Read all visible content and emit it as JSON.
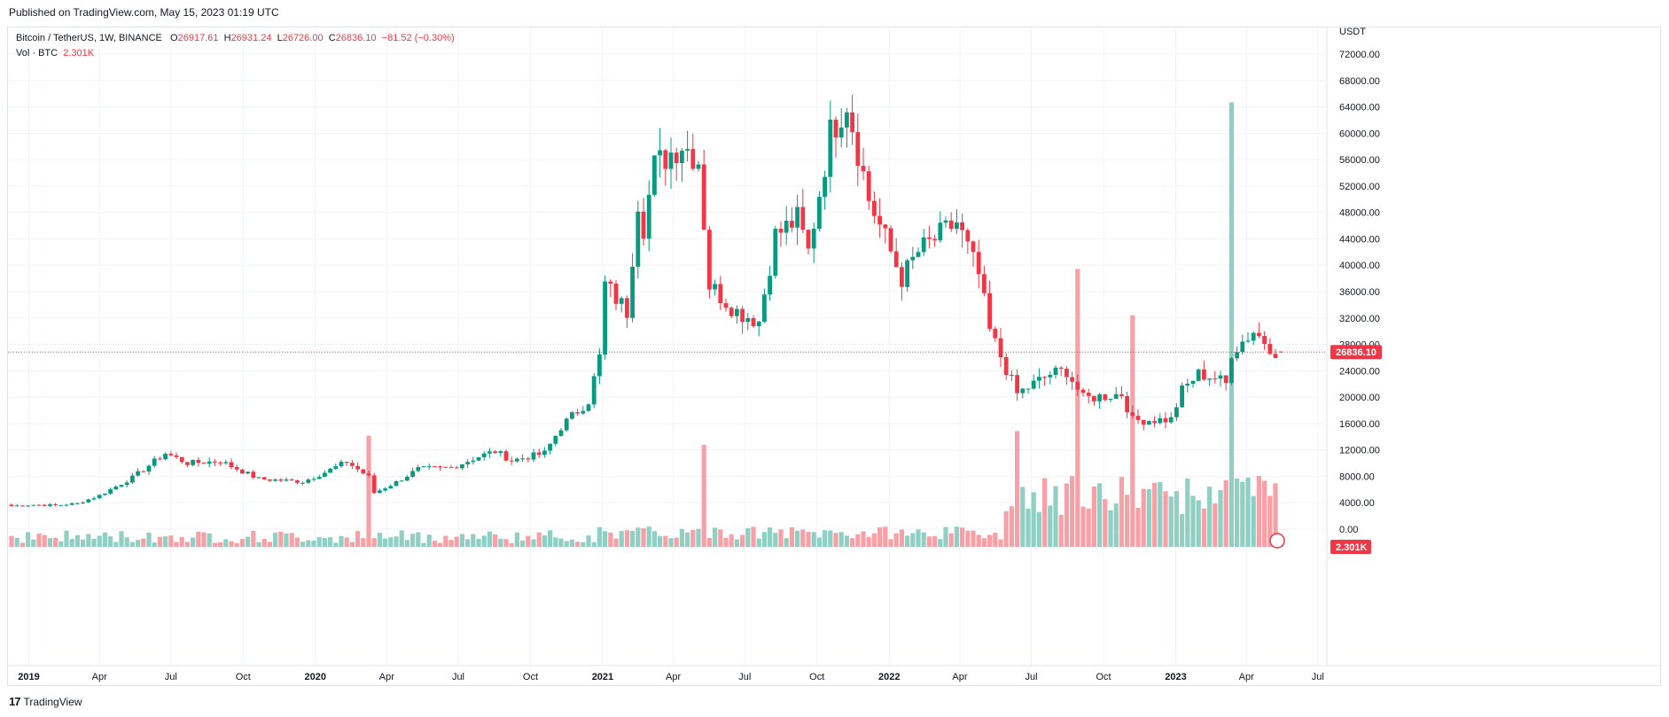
{
  "header": {
    "published": "Published on TradingView.com, May 15, 2023 01:19 UTC"
  },
  "legend": {
    "symbol": "Bitcoin / TetherUS, 1W, BINANCE",
    "o_label": "O",
    "o_value": "26917.61",
    "h_label": "H",
    "h_value": "26931.24",
    "l_label": "L",
    "l_value": "26726.00",
    "c_label": "C",
    "c_value": "26836.10",
    "change": "−81.52 (−0.30%)",
    "vol_label": "Vol · BTC",
    "vol_value": "2.301K"
  },
  "footer": {
    "brand": "TradingView"
  },
  "colors": {
    "up": "#089981",
    "down": "#f23645",
    "vol_up": "#8fcfc4",
    "vol_down": "#f7a1a7",
    "grid": "#f0f3fa"
  },
  "chart_data": {
    "type": "candlestick",
    "price_unit": "USDT",
    "ylim": [
      0,
      72000
    ],
    "yticks": [
      "72000.00",
      "68000.00",
      "64000.00",
      "60000.00",
      "56000.00",
      "52000.00",
      "48000.00",
      "44000.00",
      "40000.00",
      "36000.00",
      "32000.00",
      "28000.00",
      "24000.00",
      "20000.00",
      "16000.00",
      "12000.00",
      "8000.00",
      "4000.00",
      "0.00"
    ],
    "xticks": [
      "2019",
      "Apr",
      "Jul",
      "Oct",
      "2020",
      "Apr",
      "Jul",
      "Oct",
      "2021",
      "Apr",
      "Jul",
      "Oct",
      "2022",
      "Apr",
      "Jul",
      "Oct",
      "2023",
      "Apr",
      "Jul"
    ],
    "last_price_label": "26836.10",
    "last_volume_label": "2.301K",
    "grid": true,
    "anchors": [
      [
        "2018-12-10",
        3500
      ],
      [
        "2019-01-07",
        3700
      ],
      [
        "2019-02-04",
        3600
      ],
      [
        "2019-03-04",
        3900
      ],
      [
        "2019-04-01",
        5100
      ],
      [
        "2019-05-13",
        7800
      ],
      [
        "2019-06-24",
        11500
      ],
      [
        "2019-07-22",
        10000
      ],
      [
        "2019-09-02",
        10300
      ],
      [
        "2019-10-21",
        7600
      ],
      [
        "2019-11-18",
        7400
      ],
      [
        "2019-12-16",
        7200
      ],
      [
        "2020-01-13",
        8600
      ],
      [
        "2020-02-10",
        10200
      ],
      [
        "2020-03-09",
        7900
      ],
      [
        "2020-03-16",
        5500
      ],
      [
        "2020-04-13",
        7100
      ],
      [
        "2020-05-11",
        9100
      ],
      [
        "2020-06-22",
        9300
      ],
      [
        "2020-07-27",
        11000
      ],
      [
        "2020-08-17",
        11800
      ],
      [
        "2020-09-07",
        10400
      ],
      [
        "2020-10-19",
        11500
      ],
      [
        "2020-11-09",
        15500
      ],
      [
        "2020-12-14",
        19500
      ],
      [
        "2020-12-28",
        26000
      ],
      [
        "2021-01-04",
        37000
      ],
      [
        "2021-02-01",
        33000
      ],
      [
        "2021-02-15",
        50000
      ],
      [
        "2021-02-22",
        46000
      ],
      [
        "2021-03-08",
        55000
      ],
      [
        "2021-04-12",
        58500
      ],
      [
        "2021-05-03",
        56000
      ],
      [
        "2021-05-17",
        37000
      ],
      [
        "2021-06-21",
        33000
      ],
      [
        "2021-07-19",
        31500
      ],
      [
        "2021-08-09",
        44500
      ],
      [
        "2021-09-06",
        47000
      ],
      [
        "2021-09-20",
        42000
      ],
      [
        "2021-10-18",
        60000
      ],
      [
        "2021-11-08",
        65000
      ],
      [
        "2021-12-06",
        50000
      ],
      [
        "2022-01-17",
        38000
      ],
      [
        "2022-02-07",
        42000
      ],
      [
        "2022-03-28",
        46500
      ],
      [
        "2022-04-25",
        38500
      ],
      [
        "2022-05-09",
        30000
      ],
      [
        "2022-06-13",
        20500
      ],
      [
        "2022-07-25",
        23500
      ],
      [
        "2022-08-15",
        24000
      ],
      [
        "2022-09-05",
        19800
      ],
      [
        "2022-10-24",
        20500
      ],
      [
        "2022-11-07",
        16500
      ],
      [
        "2022-12-26",
        16600
      ],
      [
        "2023-01-09",
        21000
      ],
      [
        "2023-01-30",
        23500
      ],
      [
        "2023-02-20",
        23000
      ],
      [
        "2023-03-06",
        22000
      ],
      [
        "2023-03-13",
        26900
      ],
      [
        "2023-04-10",
        30000
      ],
      [
        "2023-05-08",
        27000
      ],
      [
        "2023-05-15",
        26836
      ]
    ],
    "volume_spikes_k": [
      [
        "2020-03-09",
        120
      ],
      [
        "2021-05-10",
        110
      ],
      [
        "2022-06-13",
        125
      ],
      [
        "2022-08-29",
        300
      ],
      [
        "2022-11-07",
        250
      ],
      [
        "2023-03-13",
        480
      ]
    ]
  }
}
